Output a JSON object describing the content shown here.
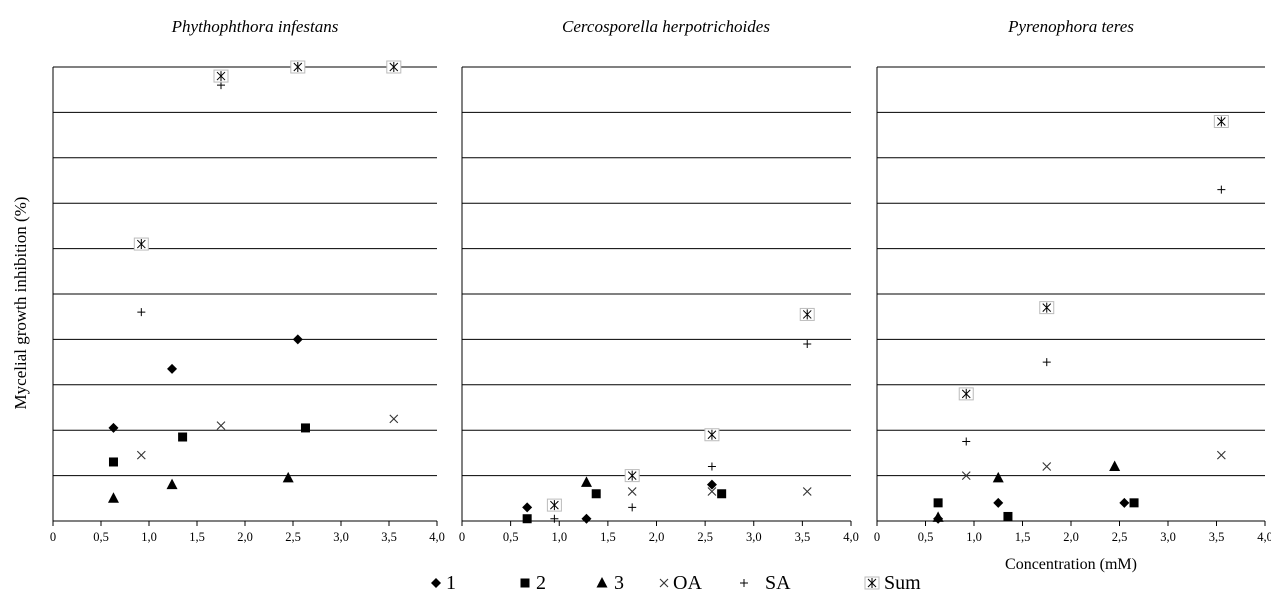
{
  "y_axis_label": "Mycelial growth inhibition  (%)",
  "legend": [
    {
      "marker": "diamond",
      "label": "1"
    },
    {
      "marker": "square",
      "label": "2"
    },
    {
      "marker": "triangle",
      "label": "3"
    },
    {
      "marker": "x",
      "label": "OA"
    },
    {
      "marker": "plus",
      "label": "SA"
    },
    {
      "marker": "sum",
      "label": "Sum"
    }
  ],
  "chart_data": [
    {
      "type": "scatter",
      "title": "Phythophthora infestans",
      "xlabel": "",
      "xlim": [
        0,
        4
      ],
      "xticks": [
        "0",
        "0,5",
        "1,0",
        "1,5",
        "2,0",
        "2,5",
        "3,0",
        "3,5",
        "4,0"
      ],
      "ylim": [
        0,
        100
      ],
      "grid": true,
      "series": [
        {
          "name": "1",
          "marker": "diamond",
          "points": [
            [
              0.63,
              20.5
            ],
            [
              1.24,
              33.5
            ],
            [
              2.55,
              40.0
            ]
          ]
        },
        {
          "name": "2",
          "marker": "square",
          "points": [
            [
              0.63,
              13.0
            ],
            [
              1.35,
              18.5
            ],
            [
              2.63,
              20.5
            ]
          ]
        },
        {
          "name": "3",
          "marker": "triangle",
          "points": [
            [
              0.63,
              5.0
            ],
            [
              1.24,
              8.0
            ],
            [
              2.45,
              9.5
            ]
          ]
        },
        {
          "name": "OA",
          "marker": "x",
          "points": [
            [
              0.92,
              14.5
            ],
            [
              1.75,
              21.0
            ],
            [
              3.55,
              22.5
            ]
          ]
        },
        {
          "name": "SA",
          "marker": "plus",
          "points": [
            [
              0.92,
              46.0
            ],
            [
              1.75,
              96.0
            ]
          ]
        },
        {
          "name": "Sum",
          "marker": "sum",
          "points": [
            [
              0.92,
              61.0
            ],
            [
              1.75,
              98.0
            ],
            [
              2.55,
              100.0
            ],
            [
              3.55,
              100.0
            ]
          ]
        }
      ]
    },
    {
      "type": "scatter",
      "title": "Cercosporella herpotrichoides",
      "xlabel": "",
      "xlim": [
        0,
        4
      ],
      "xticks": [
        "0",
        "0,5",
        "1,0",
        "1,5",
        "2,0",
        "2,5",
        "3,0",
        "3,5",
        "4,0"
      ],
      "ylim": [
        0,
        100
      ],
      "grid": true,
      "series": [
        {
          "name": "1",
          "marker": "diamond",
          "points": [
            [
              0.67,
              3.0
            ],
            [
              1.28,
              0.5
            ],
            [
              2.57,
              8.0
            ]
          ]
        },
        {
          "name": "2",
          "marker": "square",
          "points": [
            [
              0.67,
              0.5
            ],
            [
              1.38,
              6.0
            ],
            [
              2.67,
              6.0
            ]
          ]
        },
        {
          "name": "3",
          "marker": "triangle",
          "points": [
            [
              1.28,
              8.5
            ]
          ]
        },
        {
          "name": "OA",
          "marker": "x",
          "points": [
            [
              0.95,
              3.5
            ],
            [
              1.75,
              6.5
            ],
            [
              2.57,
              6.5
            ],
            [
              3.55,
              6.5
            ]
          ]
        },
        {
          "name": "SA",
          "marker": "plus",
          "points": [
            [
              0.95,
              0.5
            ],
            [
              1.75,
              3.0
            ],
            [
              2.57,
              12.0
            ],
            [
              3.55,
              39.0
            ]
          ]
        },
        {
          "name": "Sum",
          "marker": "sum",
          "points": [
            [
              0.95,
              3.5
            ],
            [
              1.75,
              10.0
            ],
            [
              2.57,
              19.0
            ],
            [
              3.55,
              45.5
            ]
          ]
        }
      ]
    },
    {
      "type": "scatter",
      "title": "Pyrenophora teres",
      "xlabel": "Concentration (mM)",
      "xlim": [
        0,
        4
      ],
      "xticks": [
        "0",
        "0,5",
        "1,0",
        "1,5",
        "2,0",
        "2,5",
        "3,0",
        "3,5",
        "4,0"
      ],
      "ylim": [
        0,
        100
      ],
      "grid": true,
      "series": [
        {
          "name": "1",
          "marker": "diamond",
          "points": [
            [
              0.63,
              0.5
            ],
            [
              1.25,
              4.0
            ],
            [
              2.55,
              4.0
            ]
          ]
        },
        {
          "name": "2",
          "marker": "square",
          "points": [
            [
              0.63,
              4.0
            ],
            [
              1.35,
              1.0
            ],
            [
              2.65,
              4.0
            ]
          ]
        },
        {
          "name": "3",
          "marker": "triangle",
          "points": [
            [
              0.63,
              0.8
            ],
            [
              1.25,
              9.5
            ],
            [
              2.45,
              12.0
            ]
          ]
        },
        {
          "name": "OA",
          "marker": "x",
          "points": [
            [
              0.92,
              10.0
            ],
            [
              1.75,
              12.0
            ],
            [
              3.55,
              14.5
            ]
          ]
        },
        {
          "name": "SA",
          "marker": "plus",
          "points": [
            [
              0.92,
              17.5
            ],
            [
              1.75,
              35.0
            ],
            [
              3.55,
              73.0
            ]
          ]
        },
        {
          "name": "Sum",
          "marker": "sum",
          "points": [
            [
              0.92,
              28.0
            ],
            [
              1.75,
              47.0
            ],
            [
              3.55,
              88.0
            ]
          ]
        }
      ]
    }
  ]
}
